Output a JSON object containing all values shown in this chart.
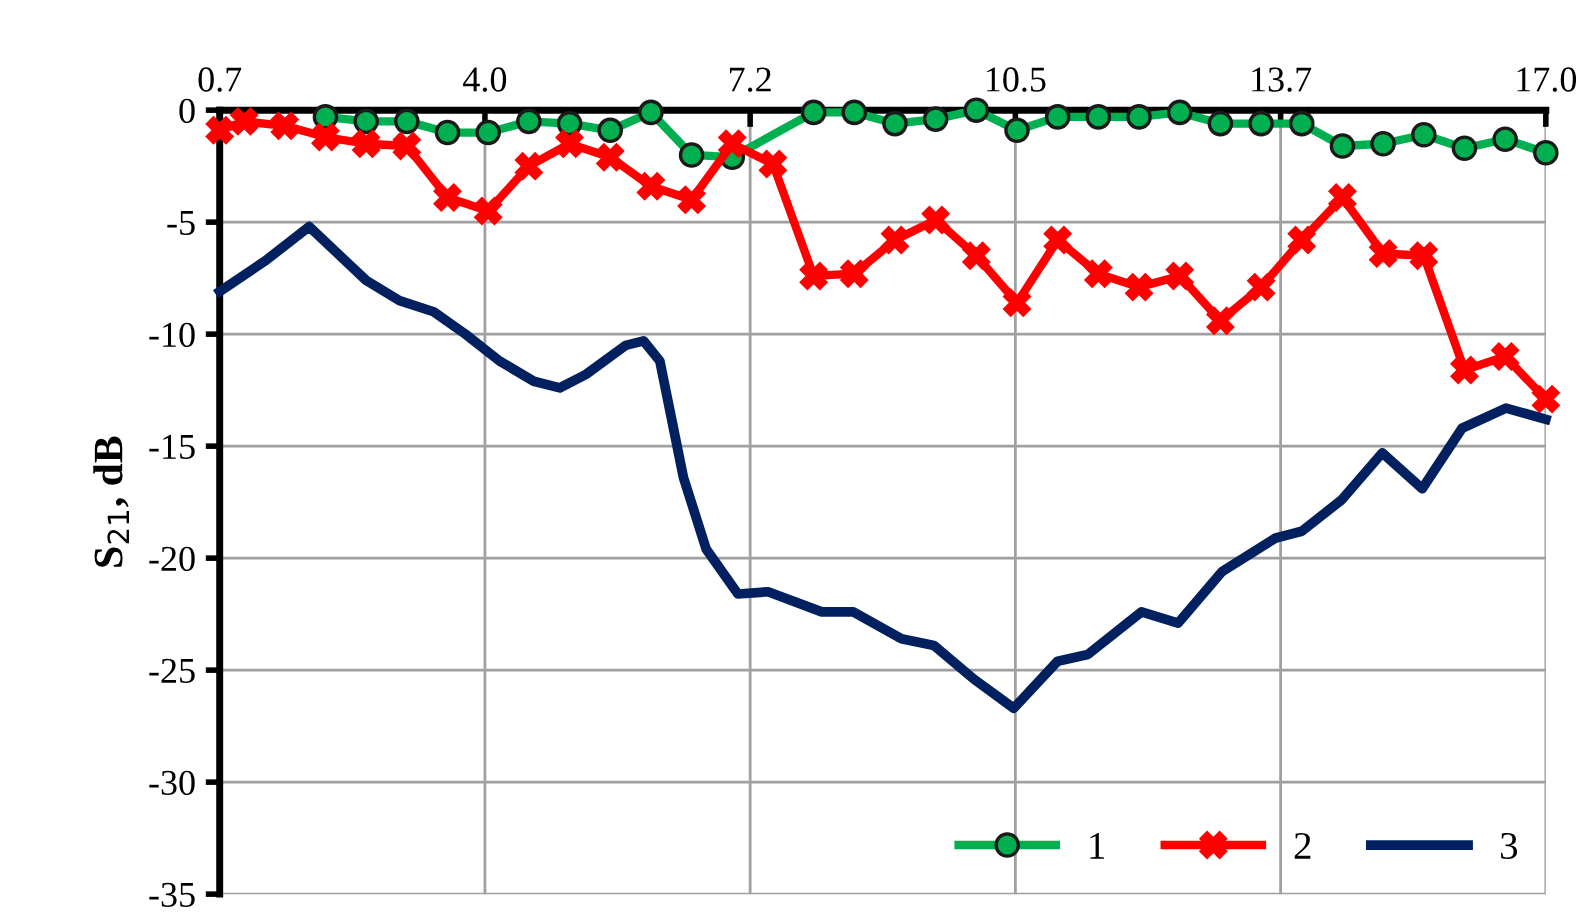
{
  "chart_data": {
    "type": "line",
    "ylabel": "S$_{21}$, dB",
    "xlim": [
      0.7,
      17.0
    ],
    "xticks": [
      {
        "value": 0.7,
        "label": "0.7"
      },
      {
        "value": 3.96,
        "label": "4.0"
      },
      {
        "value": 7.22,
        "label": "7.2"
      },
      {
        "value": 10.48,
        "label": "10.5"
      },
      {
        "value": 13.74,
        "label": "13.7"
      },
      {
        "value": 17.0,
        "label": "17.0"
      }
    ],
    "ylim": [
      -35,
      0
    ],
    "yticks": [
      -35,
      -30,
      -25,
      -20,
      -15,
      -10,
      -5,
      0
    ],
    "grid": true,
    "legend": "bottom right",
    "series": [
      {
        "name": "1",
        "color": "#00b050",
        "marker": "circle",
        "x": [
          2.0,
          2.5,
          3.0,
          3.5,
          4.0,
          4.5,
          5.0,
          5.5,
          6.0,
          6.5,
          7.0,
          8.0,
          8.5,
          9.0,
          9.5,
          10.0,
          10.5,
          11.0,
          11.5,
          12.0,
          12.5,
          13.0,
          13.5,
          14.0,
          14.5,
          15.0,
          15.5,
          16.0,
          16.5,
          17.0
        ],
        "values": [
          -0.3,
          -0.5,
          -0.5,
          -1.0,
          -1.0,
          -0.5,
          -0.6,
          -0.9,
          -0.1,
          -2.0,
          -2.1,
          -0.1,
          -0.1,
          -0.6,
          -0.4,
          0.0,
          -0.9,
          -0.3,
          -0.3,
          -0.3,
          -0.1,
          -0.6,
          -0.6,
          -0.6,
          -1.6,
          -1.5,
          -1.1,
          -1.7,
          -1.3,
          -1.9
        ]
      },
      {
        "name": "2",
        "color": "#ff0000",
        "marker": "cross",
        "x": [
          0.7,
          1.0,
          1.5,
          2.0,
          2.5,
          3.0,
          3.5,
          4.0,
          4.5,
          5.0,
          5.5,
          6.0,
          6.5,
          7.0,
          7.5,
          8.0,
          8.5,
          9.0,
          9.5,
          10.0,
          10.5,
          11.0,
          11.5,
          12.0,
          12.5,
          13.0,
          13.5,
          14.0,
          14.5,
          15.0,
          15.5,
          16.0,
          16.5,
          17.0
        ],
        "values": [
          -0.9,
          -0.5,
          -0.7,
          -1.2,
          -1.5,
          -1.6,
          -3.9,
          -4.5,
          -2.5,
          -1.5,
          -2.1,
          -3.4,
          -4.0,
          -1.5,
          -2.4,
          -7.4,
          -7.3,
          -5.8,
          -4.9,
          -6.5,
          -8.6,
          -5.8,
          -7.3,
          -7.9,
          -7.4,
          -9.4,
          -7.9,
          -5.8,
          -3.9,
          -6.4,
          -6.5,
          -11.6,
          -11.0,
          -12.9
        ]
      },
      {
        "name": "3",
        "color": "#002060",
        "marker": "none",
        "x": [
          0.7,
          1.27,
          1.8,
          2.5,
          2.91,
          3.33,
          3.72,
          4.14,
          4.56,
          4.88,
          5.2,
          5.69,
          5.91,
          6.11,
          6.4,
          6.68,
          7.07,
          7.44,
          8.1,
          8.49,
          9.08,
          9.48,
          9.97,
          10.46,
          11.0,
          11.37,
          12.03,
          12.48,
          13.02,
          13.68,
          14.0,
          14.49,
          14.99,
          15.48,
          15.97,
          16.51,
          17.0
        ],
        "values": [
          -8.1,
          -6.7,
          -5.2,
          -7.6,
          -8.5,
          -9.0,
          -10.0,
          -11.2,
          -12.1,
          -12.4,
          -11.8,
          -10.5,
          -10.3,
          -11.2,
          -16.4,
          -19.6,
          -21.6,
          -21.5,
          -22.4,
          -22.4,
          -23.6,
          -23.9,
          -25.4,
          -26.7,
          -24.6,
          -24.3,
          -22.4,
          -22.9,
          -20.6,
          -19.1,
          -18.8,
          -17.4,
          -15.3,
          -16.9,
          -14.2,
          -13.3,
          -13.8
        ]
      }
    ]
  }
}
